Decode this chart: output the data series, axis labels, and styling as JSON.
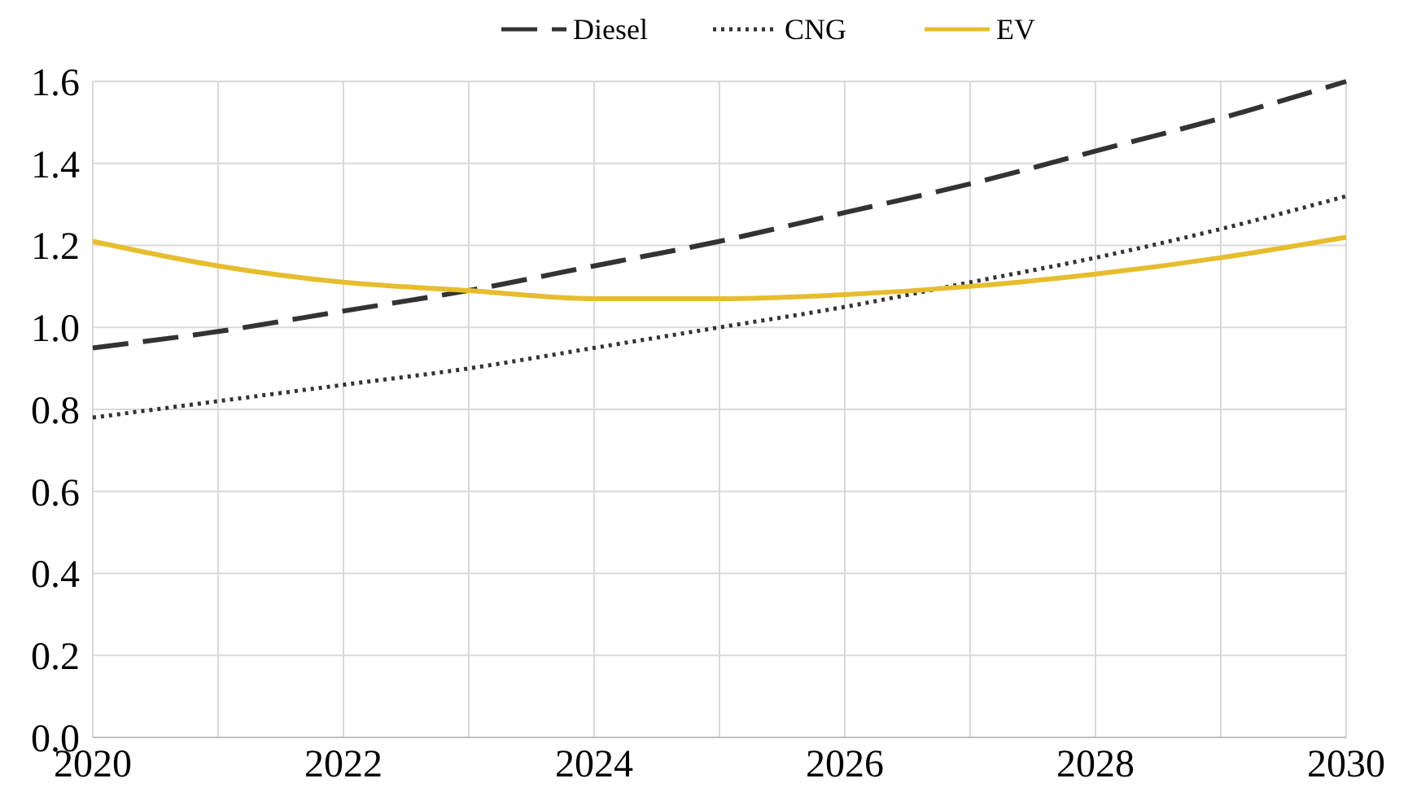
{
  "chart_data": {
    "type": "line",
    "x": [
      2020,
      2021,
      2022,
      2023,
      2024,
      2025,
      2026,
      2027,
      2028,
      2029,
      2030
    ],
    "series": [
      {
        "name": "Diesel",
        "color": "#333333",
        "line_style": "dashed",
        "values": [
          0.95,
          0.99,
          1.04,
          1.09,
          1.15,
          1.21,
          1.28,
          1.35,
          1.43,
          1.51,
          1.6
        ]
      },
      {
        "name": "CNG",
        "color": "#333333",
        "line_style": "dotted",
        "values": [
          0.78,
          0.82,
          0.86,
          0.9,
          0.95,
          1.0,
          1.05,
          1.11,
          1.17,
          1.24,
          1.32
        ]
      },
      {
        "name": "EV",
        "color": "#e6bd2e",
        "line_style": "solid",
        "values": [
          1.21,
          1.15,
          1.11,
          1.09,
          1.07,
          1.07,
          1.08,
          1.1,
          1.13,
          1.17,
          1.22
        ]
      }
    ],
    "xlim": [
      2020,
      2030
    ],
    "xticks": [
      2020,
      {
        "value": 2021,
        "label": null
      },
      2022,
      {
        "value": 2023,
        "label": null
      },
      2024,
      {
        "value": 2025,
        "label": null
      },
      2026,
      {
        "value": 2027,
        "label": null
      },
      2028,
      {
        "value": 2029,
        "label": null
      },
      2030
    ],
    "ylim": [
      0,
      1.6
    ],
    "yticks": [
      {
        "value": 0,
        "label": "0.0"
      },
      {
        "value": 0.2,
        "label": "0.2"
      },
      {
        "value": 0.4,
        "label": "0.4"
      },
      {
        "value": 0.6,
        "label": "0.6"
      },
      {
        "value": 0.8,
        "label": "0.8"
      },
      {
        "value": 1,
        "label": "1.0"
      },
      {
        "value": 1.2,
        "label": "1.2"
      },
      {
        "value": 1.4,
        "label": "1.4"
      },
      {
        "value": 1.6,
        "label": "1.6"
      }
    ],
    "grid": true,
    "legend": "top",
    "marker": "none"
  }
}
